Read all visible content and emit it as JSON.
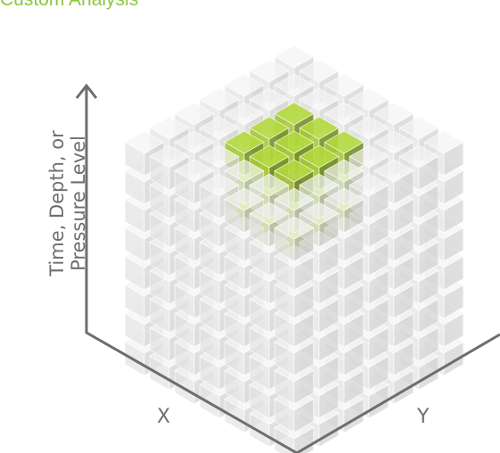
{
  "title": "Custom Analysis",
  "axes": {
    "vertical_line1": "Time, Depth, or",
    "vertical_line2": "Pressure Level",
    "x": "X",
    "y": "Y"
  },
  "colors": {
    "cube_gray_top": "#f3f3f3",
    "cube_gray_left": "#e2e2e2",
    "cube_gray_right": "#d2d2d2",
    "cube_green": "#a7c93a",
    "cube_purple": "#9a6b9c",
    "axis_line": "#6d6e71",
    "title": "#8cc63f"
  },
  "grid": {
    "size_x": 7,
    "size_y": 7,
    "size_z": 8
  },
  "highlight": {
    "purple_center": [
      3,
      3,
      6
    ],
    "green_cluster": "3x3x3 block surrounding the purple cube"
  }
}
